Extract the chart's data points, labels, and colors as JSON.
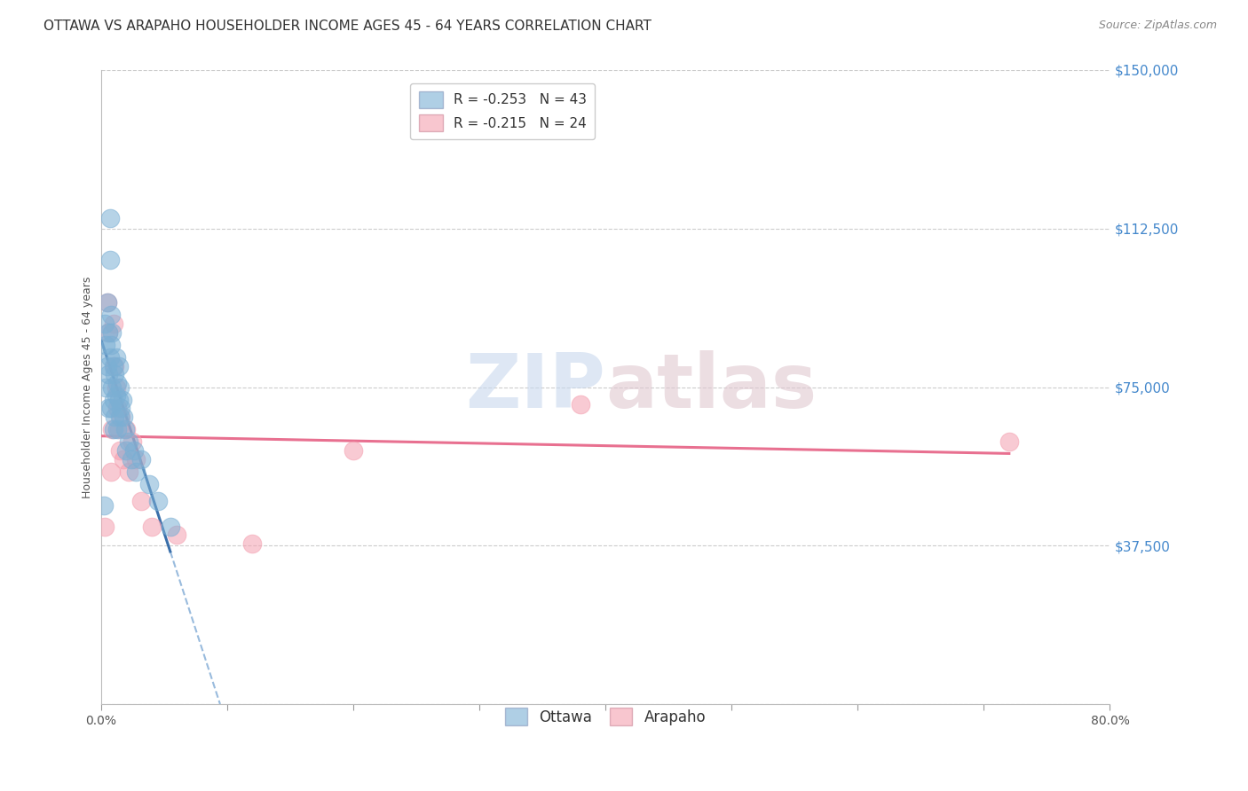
{
  "title": "OTTAWA VS ARAPAHO HOUSEHOLDER INCOME AGES 45 - 64 YEARS CORRELATION CHART",
  "source": "Source: ZipAtlas.com",
  "ylabel": "Householder Income Ages 45 - 64 years",
  "xlim": [
    0.0,
    0.8
  ],
  "ylim": [
    0,
    150000
  ],
  "yticks": [
    0,
    37500,
    75000,
    112500,
    150000
  ],
  "ytick_labels": [
    "",
    "$37,500",
    "$75,000",
    "$112,500",
    "$150,000"
  ],
  "xticks": [
    0.0,
    0.1,
    0.2,
    0.3,
    0.4,
    0.5,
    0.6,
    0.7,
    0.8
  ],
  "legend_ottawa_R": "R = -0.253",
  "legend_ottawa_N": "N = 43",
  "legend_arapaho_R": "R = -0.215",
  "legend_arapaho_N": "N = 24",
  "ottawa_color": "#7BAFD4",
  "arapaho_color": "#F4A0B0",
  "ottawa_line_color": "#3A6FAA",
  "arapaho_line_color": "#E87090",
  "dashed_line_color": "#99BBDD",
  "background_color": "#FFFFFF",
  "watermark_zip": "ZIP",
  "watermark_atlas": "atlas",
  "ottawa_x": [
    0.002,
    0.003,
    0.004,
    0.004,
    0.005,
    0.005,
    0.006,
    0.006,
    0.006,
    0.007,
    0.007,
    0.007,
    0.008,
    0.008,
    0.008,
    0.009,
    0.009,
    0.01,
    0.01,
    0.01,
    0.011,
    0.011,
    0.012,
    0.012,
    0.013,
    0.013,
    0.014,
    0.014,
    0.015,
    0.015,
    0.016,
    0.017,
    0.018,
    0.019,
    0.02,
    0.022,
    0.024,
    0.026,
    0.028,
    0.032,
    0.038,
    0.045,
    0.055
  ],
  "ottawa_y": [
    47000,
    90000,
    85000,
    75000,
    80000,
    95000,
    88000,
    78000,
    70000,
    115000,
    105000,
    82000,
    92000,
    85000,
    70000,
    88000,
    75000,
    80000,
    72000,
    65000,
    78000,
    68000,
    82000,
    73000,
    76000,
    65000,
    80000,
    72000,
    75000,
    68000,
    70000,
    72000,
    68000,
    65000,
    60000,
    62000,
    58000,
    60000,
    55000,
    58000,
    52000,
    48000,
    42000
  ],
  "arapaho_x": [
    0.003,
    0.005,
    0.006,
    0.008,
    0.009,
    0.01,
    0.011,
    0.012,
    0.013,
    0.014,
    0.015,
    0.016,
    0.018,
    0.02,
    0.022,
    0.025,
    0.028,
    0.032,
    0.04,
    0.06,
    0.12,
    0.2,
    0.38,
    0.72
  ],
  "arapaho_y": [
    42000,
    95000,
    88000,
    55000,
    65000,
    90000,
    80000,
    75000,
    70000,
    65000,
    60000,
    68000,
    58000,
    65000,
    55000,
    62000,
    58000,
    48000,
    42000,
    40000,
    38000,
    60000,
    71000,
    62000
  ],
  "title_fontsize": 11,
  "axis_label_fontsize": 9,
  "tick_fontsize": 10,
  "legend_fontsize": 11,
  "ytick_color": "#4488CC"
}
